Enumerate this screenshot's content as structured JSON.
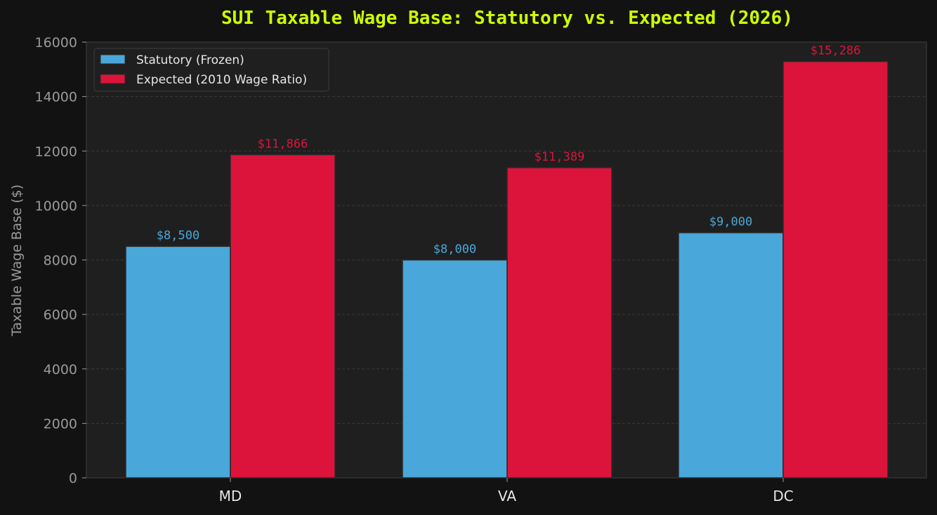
{
  "chart_data": {
    "type": "bar",
    "title": "SUI Taxable Wage Base: Statutory vs. Expected (2026)",
    "xlabel": "",
    "ylabel": "Taxable Wage Base ($)",
    "categories": [
      "MD",
      "VA",
      "DC"
    ],
    "series": [
      {
        "name": "Statutory (Frozen)",
        "values": [
          8500,
          8000,
          9000
        ],
        "labels": [
          "$8,500",
          "$8,000",
          "$9,000"
        ],
        "color": "#4aa7d9"
      },
      {
        "name": "Expected (2010 Wage Ratio)",
        "values": [
          11866,
          11389,
          15286
        ],
        "labels": [
          "$11,866",
          "$11,389",
          "$15,286"
        ],
        "color": "#dc143c"
      }
    ],
    "ylim": [
      0,
      16000
    ],
    "yticks": [
      0,
      2000,
      4000,
      6000,
      8000,
      10000,
      12000,
      14000,
      16000
    ],
    "grid": true,
    "legend_position": "top-left"
  },
  "colors": {
    "background": "#121212",
    "plot_background": "#1f1f1f",
    "title": "#ccff00",
    "axis_text": "#9a9a9a",
    "category_text": "#e6e6e6",
    "grid": "#3a3a3a",
    "legend_text": "#e6e6e6"
  }
}
